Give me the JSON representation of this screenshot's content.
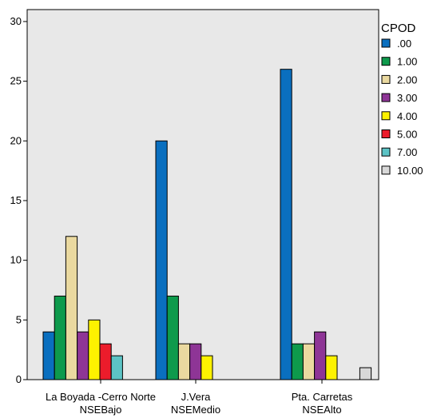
{
  "chart_data": {
    "type": "bar",
    "categories": [
      [
        "La Boyada -Cerro Norte",
        "NSEBajo"
      ],
      [
        "J.Vera",
        "NSEMedio"
      ],
      [
        "Pta. Carretas",
        "NSEAlto"
      ]
    ],
    "series": [
      {
        "name": ".00",
        "color": "#0a6fbf",
        "values": [
          4,
          20,
          26
        ]
      },
      {
        "name": "1.00",
        "color": "#0e9a4c",
        "values": [
          7,
          7,
          3
        ]
      },
      {
        "name": "2.00",
        "color": "#ead9a0",
        "values": [
          12,
          3,
          3
        ]
      },
      {
        "name": "3.00",
        "color": "#8e3596",
        "values": [
          4,
          3,
          4
        ]
      },
      {
        "name": "4.00",
        "color": "#fdf200",
        "values": [
          5,
          2,
          2
        ]
      },
      {
        "name": "5.00",
        "color": "#ec1c2b",
        "values": [
          3,
          null,
          null
        ]
      },
      {
        "name": "7.00",
        "color": "#5cc3c5",
        "values": [
          2,
          null,
          null
        ]
      },
      {
        "name": "10.00",
        "color": "#d8d8d8",
        "values": [
          null,
          null,
          1
        ]
      }
    ],
    "legend_title": "CPOD",
    "legend_position": "right",
    "ylim": [
      0,
      31
    ],
    "yticks": [
      0,
      5,
      10,
      15,
      20,
      25,
      30
    ],
    "grid": false,
    "background": "#e8e8e8"
  }
}
